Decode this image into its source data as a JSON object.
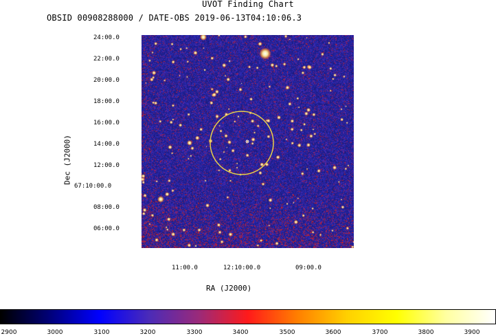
{
  "title": "UVOT Finding Chart",
  "subtitle": "OBSID 00908288000 / DATE-OBS 2019-06-13T04:10:06.3",
  "dec_axis": {
    "label": "Dec (J2000)",
    "ticks": [
      "24:00.0",
      "22:00.0",
      "20:00.0",
      "18:00.0",
      "16:00.0",
      "14:00.0",
      "12:00.0",
      "67:10:00.0",
      "08:00.0",
      "06:00.0"
    ]
  },
  "ra_axis": {
    "label": "RA (J2000)",
    "ticks": [
      "11:00.0",
      "12:10:00.0",
      "09:00.0"
    ]
  },
  "colorbar": {
    "ticks": [
      "2900",
      "3000",
      "3100",
      "3200",
      "3300",
      "3400",
      "3500",
      "3600",
      "3700",
      "3800",
      "3900"
    ],
    "colors": [
      "#000000",
      "#00007a",
      "#0000ff",
      "#4b2bb8",
      "#9a2a7a",
      "#ff1a1a",
      "#ff7f00",
      "#ffd000",
      "#ffff00",
      "#ffffa0",
      "#ffffff"
    ]
  },
  "target_circle": {
    "color": "#e8d04a"
  },
  "image": {
    "background": "#1a1a86"
  }
}
